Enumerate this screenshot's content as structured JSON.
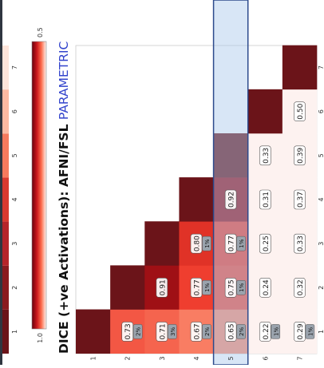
{
  "chart_data": {
    "type": "heatmap",
    "title_prefix": "DICE (+ve Activations): AFNI/FSL ",
    "title_suffix": "PARAMETRIC",
    "title_prefix_color": "#111111",
    "title_suffix_color": "#3344cc",
    "row_labels": [
      "1",
      "2",
      "3",
      "4",
      "5",
      "6",
      "7"
    ],
    "col_labels": [
      "1",
      "2",
      "3",
      "4",
      "5",
      "6",
      "7"
    ],
    "values": [
      [
        1.0,
        null,
        null,
        null,
        null,
        null,
        null
      ],
      [
        0.73,
        1.0,
        null,
        null,
        null,
        null,
        null
      ],
      [
        0.71,
        0.91,
        1.0,
        null,
        null,
        null,
        null
      ],
      [
        0.67,
        0.77,
        0.8,
        1.0,
        null,
        null,
        null
      ],
      [
        0.65,
        0.75,
        0.77,
        0.92,
        1.0,
        null,
        null
      ],
      [
        0.22,
        0.24,
        0.25,
        0.31,
        0.33,
        1.0,
        null
      ],
      [
        0.29,
        0.32,
        0.33,
        0.37,
        0.39,
        0.5,
        1.0
      ]
    ],
    "cell_labels": [
      {
        "row": 1,
        "col": 0,
        "text": "0.73"
      },
      {
        "row": 2,
        "col": 0,
        "text": "0.71"
      },
      {
        "row": 2,
        "col": 1,
        "text": "0.91"
      },
      {
        "row": 3,
        "col": 0,
        "text": "0.67"
      },
      {
        "row": 3,
        "col": 1,
        "text": "0.77"
      },
      {
        "row": 3,
        "col": 2,
        "text": "0.80"
      },
      {
        "row": 4,
        "col": 0,
        "text": "0.65"
      },
      {
        "row": 4,
        "col": 1,
        "text": "0.75"
      },
      {
        "row": 4,
        "col": 2,
        "text": "0.77"
      },
      {
        "row": 4,
        "col": 3,
        "text": "0.92"
      },
      {
        "row": 5,
        "col": 0,
        "text": "0.22"
      },
      {
        "row": 5,
        "col": 1,
        "text": "0.24"
      },
      {
        "row": 5,
        "col": 2,
        "text": "0.25"
      },
      {
        "row": 5,
        "col": 3,
        "text": "0.31"
      },
      {
        "row": 5,
        "col": 4,
        "text": "0.33"
      },
      {
        "row": 6,
        "col": 0,
        "text": "0.29"
      },
      {
        "row": 6,
        "col": 1,
        "text": "0.32"
      },
      {
        "row": 6,
        "col": 2,
        "text": "0.33"
      },
      {
        "row": 6,
        "col": 3,
        "text": "0.37"
      },
      {
        "row": 6,
        "col": 4,
        "text": "0.39"
      },
      {
        "row": 6,
        "col": 5,
        "text": "0.50"
      }
    ],
    "badges": [
      {
        "row": 1,
        "col": 0,
        "text": "2%"
      },
      {
        "row": 2,
        "col": 0,
        "text": "3%"
      },
      {
        "row": 3,
        "col": 0,
        "text": "2%"
      },
      {
        "row": 3,
        "col": 1,
        "text": "1%"
      },
      {
        "row": 3,
        "col": 2,
        "text": "1%"
      },
      {
        "row": 4,
        "col": 0,
        "text": "2%"
      },
      {
        "row": 4,
        "col": 1,
        "text": "1%"
      },
      {
        "row": 4,
        "col": 2,
        "text": "1%"
      },
      {
        "row": 5,
        "col": 0,
        "text": "1%"
      },
      {
        "row": 6,
        "col": 0,
        "text": "1%"
      }
    ],
    "highlight_row": 4,
    "highlight_color": "#a8c8ea",
    "highlight_border": "#2c4a8c",
    "colorbar": {
      "min_label": "0.5",
      "max_label": "1.0",
      "min": 0.5,
      "max": 1.0
    },
    "colors": {
      "high": "#6b1419",
      "low": "#fdf2f0"
    },
    "top_strip_labels": [
      "1",
      "2",
      "3",
      "4",
      "5",
      "6",
      "7"
    ],
    "grid": false
  }
}
